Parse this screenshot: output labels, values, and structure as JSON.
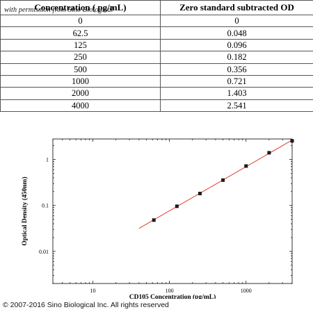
{
  "table": {
    "headers": [
      "Concentration ( pg/mL)",
      "Zero standard subtracted OD"
    ],
    "watermark": "with permission from Sino Biological",
    "rows": [
      [
        "0",
        "0"
      ],
      [
        "62.5",
        "0.048"
      ],
      [
        "125",
        "0.096"
      ],
      [
        "250",
        "0.182"
      ],
      [
        "500",
        "0.356"
      ],
      [
        "1000",
        "0.721"
      ],
      [
        "2000",
        "1.403"
      ],
      [
        "4000",
        "2.541"
      ]
    ]
  },
  "chart_data": {
    "type": "scatter",
    "x_scale": "log",
    "y_scale": "log",
    "xlabel": "CD105 Concentration (pg/mL)",
    "ylabel": "Optical Density (450nm)",
    "xlim": [
      3,
      4000
    ],
    "ylim": [
      0.002,
      2.8
    ],
    "x_ticks": [
      10,
      100,
      1000
    ],
    "x_tick_labels": [
      "10",
      "100",
      "1000"
    ],
    "y_ticks": [
      0.01,
      0.1,
      1
    ],
    "y_tick_labels": [
      "0.01",
      "0.1",
      "1"
    ],
    "points": [
      [
        62.5,
        0.048
      ],
      [
        125,
        0.096
      ],
      [
        250,
        0.182
      ],
      [
        500,
        0.356
      ],
      [
        1000,
        0.721
      ],
      [
        2000,
        1.403
      ],
      [
        4000,
        2.541
      ]
    ],
    "fit_line": {
      "x": [
        40,
        4000
      ],
      "color": "#e8372b"
    },
    "marker_color": "#1a1a1a",
    "grid": false
  },
  "copyright": "© 2007-2016 Sino Biological Inc. All rights reserved"
}
